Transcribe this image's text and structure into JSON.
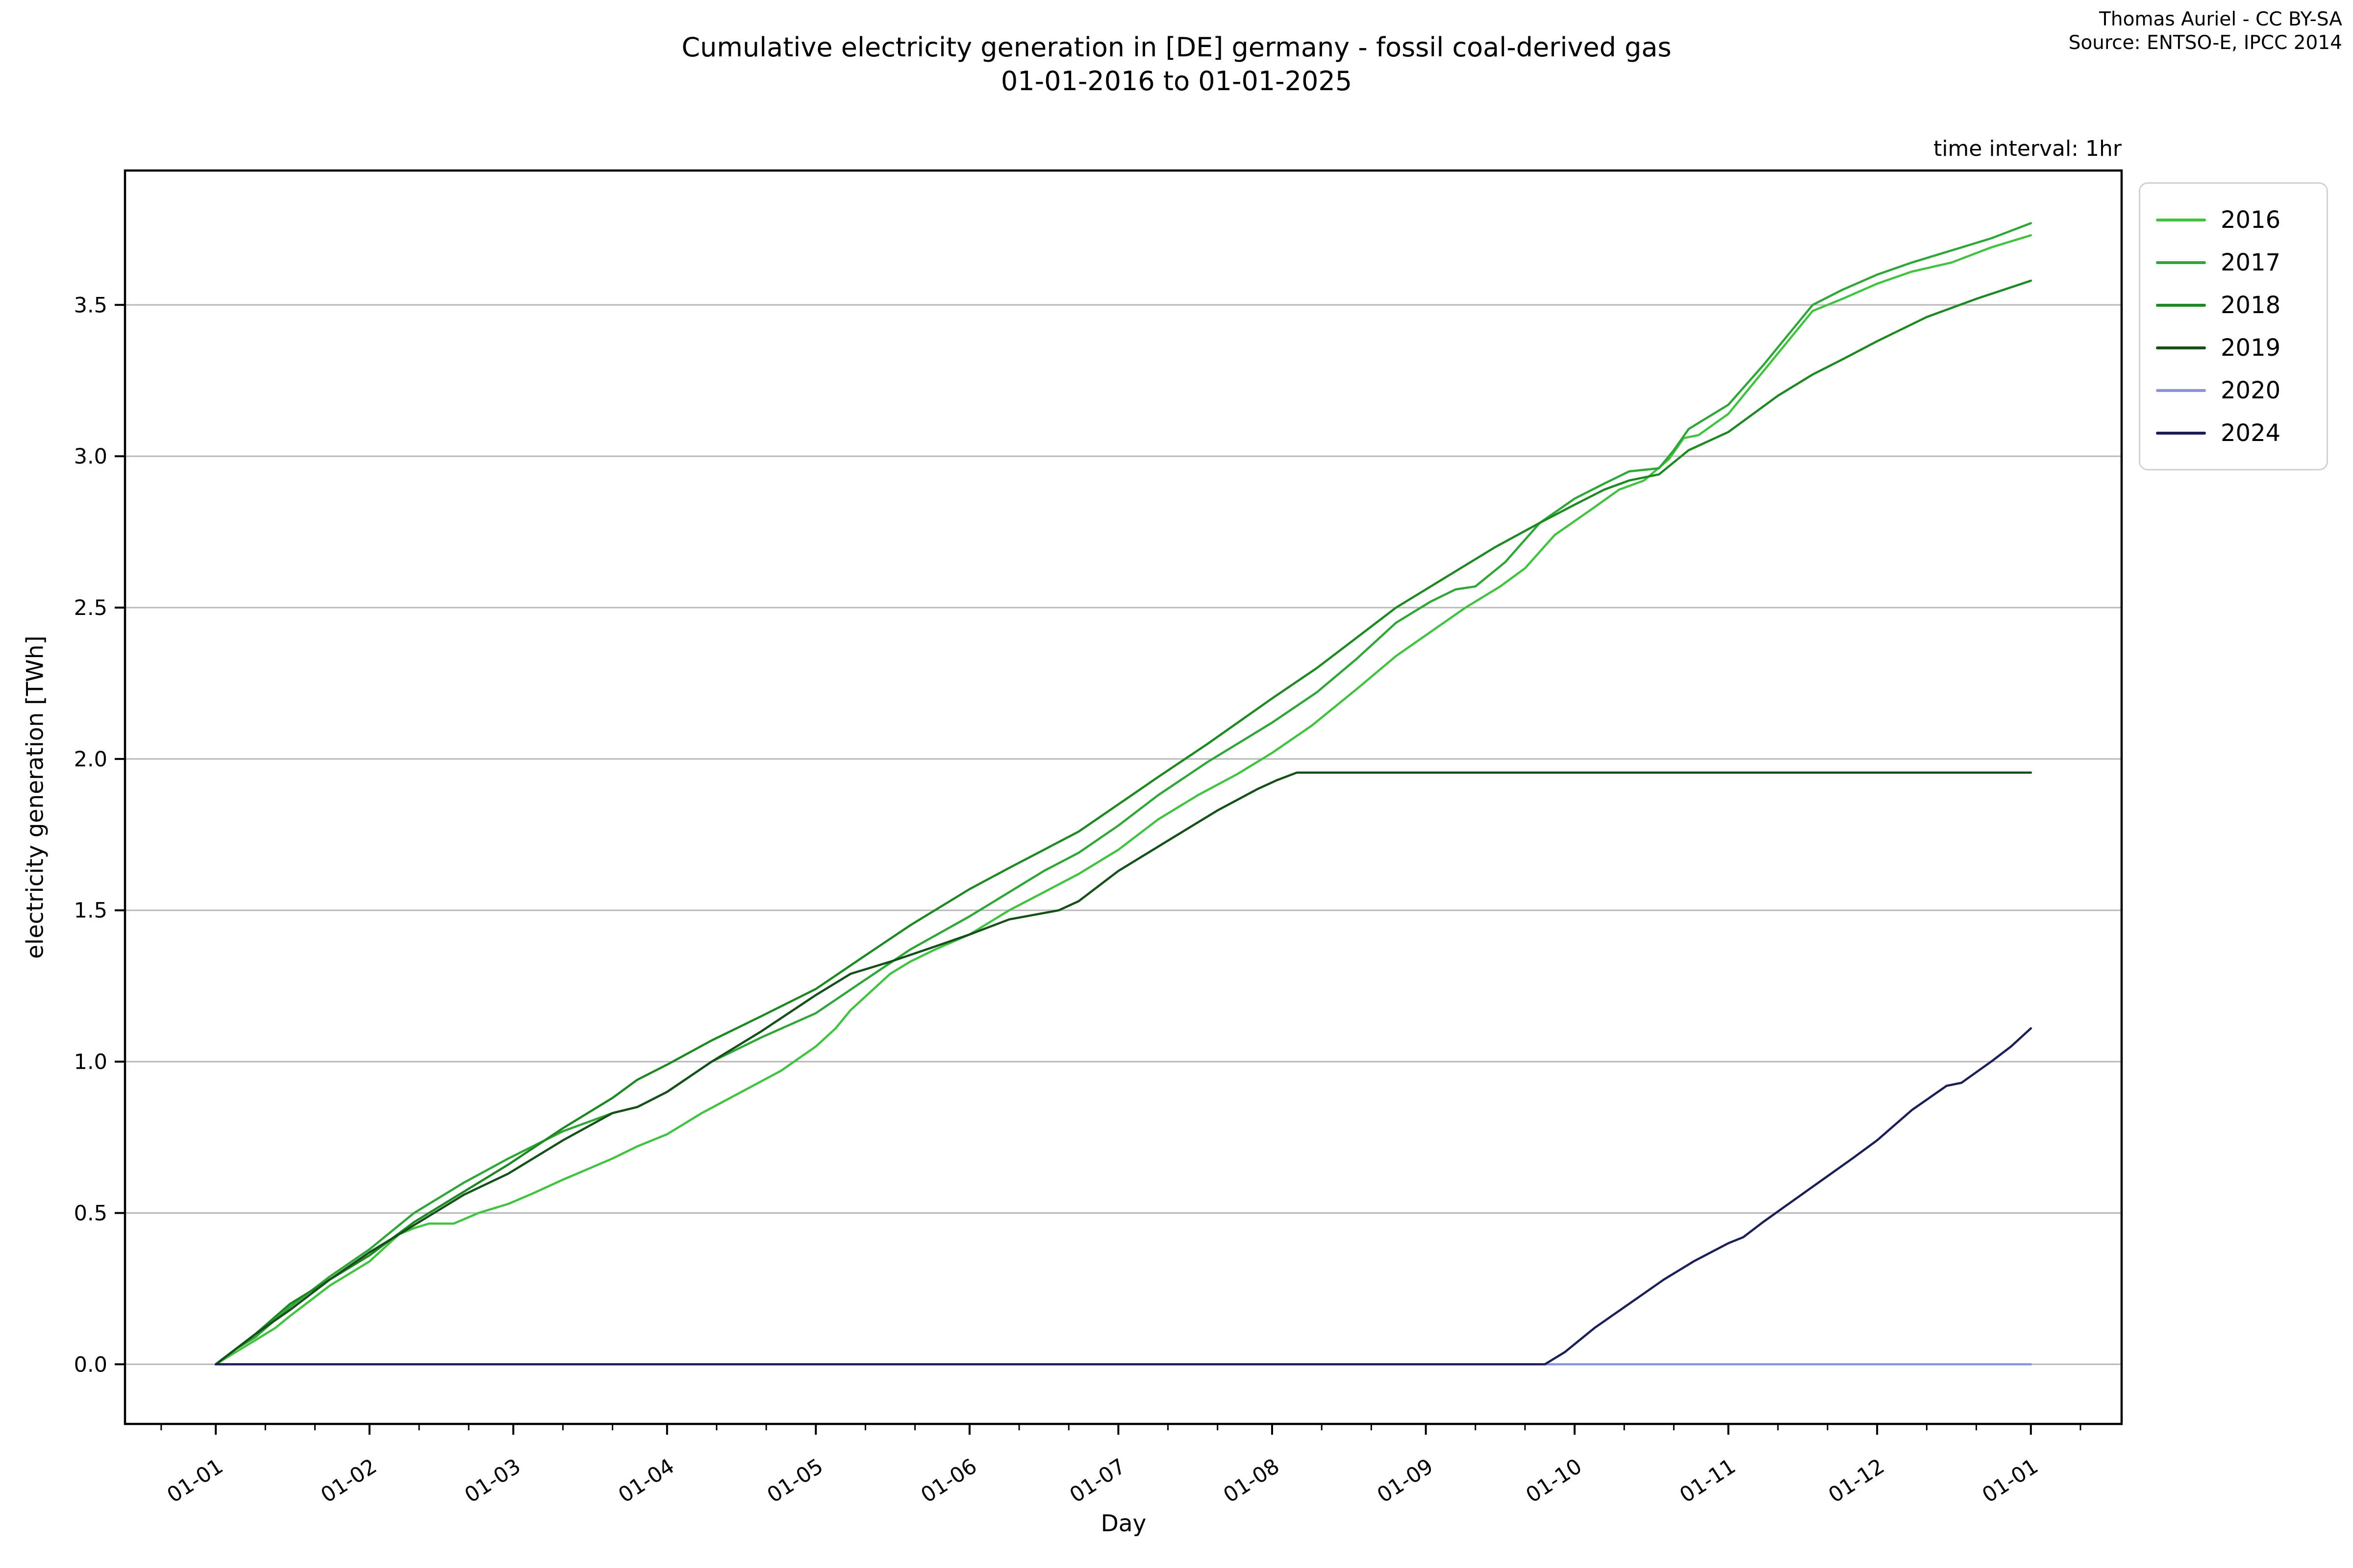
{
  "header": {
    "title_line1": "Cumulative electricity generation in [DE] germany - fossil coal-derived gas",
    "title_line2": "01-01-2016 to 01-01-2025",
    "attribution_line1": "Thomas Auriel - CC BY-SA",
    "attribution_line2": "Source: ENTSO-E, IPCC 2014",
    "time_interval_note": "time interval: 1hr"
  },
  "chart_data": {
    "type": "line",
    "title": "Cumulative electricity generation in [DE] germany - fossil coal-derived gas 01-01-2016 to 01-01-2025",
    "xlabel": "Day",
    "ylabel": "electricity generation [TWh]",
    "x_unit": "day_of_year",
    "grid": true,
    "grid_color": "#b8b8b8",
    "spine_color": "#000000",
    "legend_position": "outside-top-right",
    "xlim": [
      -18.3,
      384.3
    ],
    "ylim": [
      -0.197,
      3.944
    ],
    "x_ticks": [
      {
        "day": 0,
        "label": "01-01"
      },
      {
        "day": 31,
        "label": "01-02"
      },
      {
        "day": 60,
        "label": "01-03"
      },
      {
        "day": 91,
        "label": "01-04"
      },
      {
        "day": 121,
        "label": "01-05"
      },
      {
        "day": 152,
        "label": "01-06"
      },
      {
        "day": 182,
        "label": "01-07"
      },
      {
        "day": 213,
        "label": "01-08"
      },
      {
        "day": 244,
        "label": "01-09"
      },
      {
        "day": 274,
        "label": "01-10"
      },
      {
        "day": 305,
        "label": "01-11"
      },
      {
        "day": 335,
        "label": "01-12"
      },
      {
        "day": 366,
        "label": "01-01"
      }
    ],
    "x_minor_tick_days": [
      -11,
      10,
      20,
      41,
      51,
      70,
      80,
      101,
      111,
      131,
      141,
      162,
      172,
      192,
      202,
      223,
      233,
      254,
      264,
      284,
      294,
      315,
      325,
      345,
      355,
      376
    ],
    "y_ticks": [
      {
        "value": 0.0,
        "label": "0.0"
      },
      {
        "value": 0.5,
        "label": "0.5"
      },
      {
        "value": 1.0,
        "label": "1.0"
      },
      {
        "value": 1.5,
        "label": "1.5"
      },
      {
        "value": 2.0,
        "label": "2.0"
      },
      {
        "value": 2.5,
        "label": "2.5"
      },
      {
        "value": 3.0,
        "label": "3.0"
      },
      {
        "value": 3.5,
        "label": "3.5"
      }
    ],
    "series": [
      {
        "name": "2016",
        "color": "#41c341",
        "points": [
          [
            0,
            0
          ],
          [
            4,
            0.04
          ],
          [
            8,
            0.08
          ],
          [
            12,
            0.12
          ],
          [
            15,
            0.16
          ],
          [
            19,
            0.21
          ],
          [
            23,
            0.26
          ],
          [
            27,
            0.3
          ],
          [
            31,
            0.34
          ],
          [
            34,
            0.385
          ],
          [
            37,
            0.43
          ],
          [
            40,
            0.45
          ],
          [
            43,
            0.465
          ],
          [
            48,
            0.465
          ],
          [
            53,
            0.5
          ],
          [
            59,
            0.53
          ],
          [
            64,
            0.565
          ],
          [
            70,
            0.61
          ],
          [
            75,
            0.645
          ],
          [
            80,
            0.68
          ],
          [
            85,
            0.72
          ],
          [
            91,
            0.76
          ],
          [
            98,
            0.83
          ],
          [
            106,
            0.9
          ],
          [
            114,
            0.97
          ],
          [
            121,
            1.05
          ],
          [
            125,
            1.11
          ],
          [
            128,
            1.17
          ],
          [
            132,
            1.23
          ],
          [
            136,
            1.29
          ],
          [
            140,
            1.33
          ],
          [
            145,
            1.37
          ],
          [
            152,
            1.42
          ],
          [
            160,
            1.5
          ],
          [
            167,
            1.56
          ],
          [
            174,
            1.62
          ],
          [
            182,
            1.7
          ],
          [
            190,
            1.8
          ],
          [
            198,
            1.88
          ],
          [
            206,
            1.95
          ],
          [
            213,
            2.02
          ],
          [
            221,
            2.11
          ],
          [
            230,
            2.23
          ],
          [
            238,
            2.34
          ],
          [
            245,
            2.42
          ],
          [
            252,
            2.5
          ],
          [
            259,
            2.57
          ],
          [
            264,
            2.63
          ],
          [
            270,
            2.74
          ],
          [
            277,
            2.82
          ],
          [
            283,
            2.89
          ],
          [
            288,
            2.92
          ],
          [
            293,
            2.99
          ],
          [
            296,
            3.06
          ],
          [
            299,
            3.07
          ],
          [
            305,
            3.14
          ],
          [
            312,
            3.28
          ],
          [
            317,
            3.38
          ],
          [
            322,
            3.48
          ],
          [
            328,
            3.52
          ],
          [
            335,
            3.57
          ],
          [
            342,
            3.61
          ],
          [
            350,
            3.64
          ],
          [
            358,
            3.69
          ],
          [
            366,
            3.73
          ]
        ]
      },
      {
        "name": "2017",
        "color": "#2fa637",
        "points": [
          [
            0,
            0
          ],
          [
            4,
            0.05
          ],
          [
            8,
            0.09
          ],
          [
            15,
            0.19
          ],
          [
            23,
            0.29
          ],
          [
            31,
            0.38
          ],
          [
            40,
            0.5
          ],
          [
            50,
            0.6
          ],
          [
            59,
            0.68
          ],
          [
            70,
            0.77
          ],
          [
            80,
            0.83
          ],
          [
            85,
            0.85
          ],
          [
            91,
            0.9
          ],
          [
            100,
            1.0
          ],
          [
            110,
            1.08
          ],
          [
            121,
            1.16
          ],
          [
            130,
            1.26
          ],
          [
            140,
            1.37
          ],
          [
            152,
            1.48
          ],
          [
            160,
            1.56
          ],
          [
            167,
            1.63
          ],
          [
            174,
            1.69
          ],
          [
            182,
            1.78
          ],
          [
            190,
            1.88
          ],
          [
            200,
            1.99
          ],
          [
            206,
            2.05
          ],
          [
            213,
            2.12
          ],
          [
            222,
            2.22
          ],
          [
            230,
            2.33
          ],
          [
            238,
            2.45
          ],
          [
            245,
            2.52
          ],
          [
            250,
            2.56
          ],
          [
            254,
            2.57
          ],
          [
            260,
            2.65
          ],
          [
            267,
            2.78
          ],
          [
            274,
            2.86
          ],
          [
            280,
            2.91
          ],
          [
            285,
            2.95
          ],
          [
            291,
            2.96
          ],
          [
            294,
            3.02
          ],
          [
            297,
            3.09
          ],
          [
            305,
            3.17
          ],
          [
            312,
            3.3
          ],
          [
            317,
            3.4
          ],
          [
            322,
            3.5
          ],
          [
            328,
            3.55
          ],
          [
            335,
            3.6
          ],
          [
            342,
            3.64
          ],
          [
            350,
            3.68
          ],
          [
            358,
            3.72
          ],
          [
            366,
            3.77
          ]
        ]
      },
      {
        "name": "2018",
        "color": "#1e8822",
        "points": [
          [
            0,
            0
          ],
          [
            4,
            0.05
          ],
          [
            8,
            0.1
          ],
          [
            15,
            0.2
          ],
          [
            23,
            0.28
          ],
          [
            31,
            0.36
          ],
          [
            40,
            0.47
          ],
          [
            50,
            0.57
          ],
          [
            59,
            0.66
          ],
          [
            70,
            0.78
          ],
          [
            80,
            0.88
          ],
          [
            85,
            0.94
          ],
          [
            91,
            0.99
          ],
          [
            100,
            1.07
          ],
          [
            110,
            1.15
          ],
          [
            121,
            1.24
          ],
          [
            130,
            1.34
          ],
          [
            140,
            1.45
          ],
          [
            152,
            1.57
          ],
          [
            160,
            1.64
          ],
          [
            167,
            1.7
          ],
          [
            174,
            1.76
          ],
          [
            182,
            1.85
          ],
          [
            190,
            1.94
          ],
          [
            200,
            2.05
          ],
          [
            213,
            2.2
          ],
          [
            222,
            2.3
          ],
          [
            230,
            2.4
          ],
          [
            238,
            2.5
          ],
          [
            248,
            2.6
          ],
          [
            258,
            2.7
          ],
          [
            267,
            2.78
          ],
          [
            274,
            2.84
          ],
          [
            280,
            2.89
          ],
          [
            285,
            2.92
          ],
          [
            291,
            2.94
          ],
          [
            297,
            3.02
          ],
          [
            305,
            3.08
          ],
          [
            310,
            3.14
          ],
          [
            315,
            3.2
          ],
          [
            322,
            3.27
          ],
          [
            328,
            3.32
          ],
          [
            335,
            3.38
          ],
          [
            345,
            3.46
          ],
          [
            355,
            3.52
          ],
          [
            366,
            3.58
          ]
        ]
      },
      {
        "name": "2019",
        "color": "#15501a",
        "points": [
          [
            0,
            0
          ],
          [
            4,
            0.05
          ],
          [
            8,
            0.1
          ],
          [
            15,
            0.18
          ],
          [
            23,
            0.28
          ],
          [
            31,
            0.37
          ],
          [
            40,
            0.46
          ],
          [
            50,
            0.56
          ],
          [
            59,
            0.63
          ],
          [
            70,
            0.74
          ],
          [
            80,
            0.83
          ],
          [
            85,
            0.85
          ],
          [
            91,
            0.9
          ],
          [
            100,
            1.0
          ],
          [
            110,
            1.1
          ],
          [
            121,
            1.22
          ],
          [
            128,
            1.29
          ],
          [
            136,
            1.33
          ],
          [
            145,
            1.38
          ],
          [
            152,
            1.42
          ],
          [
            160,
            1.47
          ],
          [
            170,
            1.5
          ],
          [
            174,
            1.53
          ],
          [
            182,
            1.63
          ],
          [
            192,
            1.73
          ],
          [
            202,
            1.83
          ],
          [
            210,
            1.9
          ],
          [
            214,
            1.93
          ],
          [
            218,
            1.955
          ],
          [
            366,
            1.955
          ]
        ]
      },
      {
        "name": "2020",
        "color": "#8b94e0",
        "points": [
          [
            0,
            0
          ],
          [
            366,
            0
          ]
        ]
      },
      {
        "name": "2024",
        "color": "#1b1f55",
        "points": [
          [
            0,
            0
          ],
          [
            260,
            0
          ],
          [
            268,
            0
          ],
          [
            272,
            0.04
          ],
          [
            278,
            0.12
          ],
          [
            285,
            0.2
          ],
          [
            292,
            0.28
          ],
          [
            298,
            0.34
          ],
          [
            305,
            0.4
          ],
          [
            308,
            0.42
          ],
          [
            312,
            0.47
          ],
          [
            318,
            0.54
          ],
          [
            324,
            0.61
          ],
          [
            330,
            0.68
          ],
          [
            335,
            0.74
          ],
          [
            342,
            0.84
          ],
          [
            349,
            0.92
          ],
          [
            352,
            0.93
          ],
          [
            358,
            1.0
          ],
          [
            362,
            1.05
          ],
          [
            366,
            1.11
          ]
        ]
      }
    ]
  }
}
